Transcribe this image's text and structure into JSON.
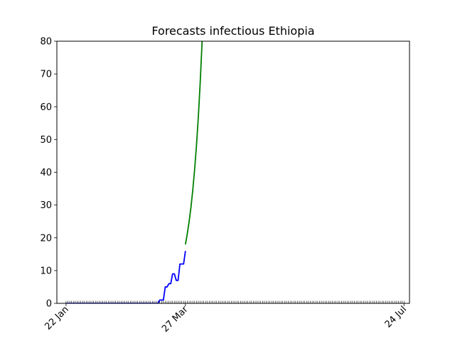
{
  "chart_data": {
    "type": "line",
    "title": "Forecasts infectious Ethiopia",
    "xlabel": "",
    "ylabel": "",
    "x_range": [
      "2020-01-17",
      "2020-07-27"
    ],
    "ylim": [
      0,
      80
    ],
    "y_ticks": [
      0,
      10,
      20,
      30,
      40,
      50,
      60,
      70,
      80
    ],
    "x_ticks": [
      {
        "date": "2020-01-22",
        "label": "22 Jan"
      },
      {
        "date": "2020-03-27",
        "label": "27 Mar"
      },
      {
        "date": "2020-07-24",
        "label": "24 Jul"
      }
    ],
    "minor_ticks": "daily",
    "grid": false,
    "series": [
      {
        "color": "#0000ff",
        "points": [
          [
            "2020-01-22",
            0
          ],
          [
            "2020-03-12",
            0
          ],
          [
            "2020-03-13",
            1
          ],
          [
            "2020-03-14",
            1
          ],
          [
            "2020-03-15",
            1
          ],
          [
            "2020-03-16",
            5
          ],
          [
            "2020-03-17",
            5
          ],
          [
            "2020-03-18",
            6
          ],
          [
            "2020-03-19",
            6
          ],
          [
            "2020-03-20",
            9
          ],
          [
            "2020-03-21",
            9
          ],
          [
            "2020-03-22",
            7
          ],
          [
            "2020-03-23",
            7
          ],
          [
            "2020-03-24",
            12
          ],
          [
            "2020-03-25",
            12
          ],
          [
            "2020-03-26",
            12
          ],
          [
            "2020-03-27",
            16
          ]
        ]
      },
      {
        "color": "#008000",
        "points": [
          [
            "2020-03-27",
            18
          ],
          [
            "2020-03-28",
            21.2
          ],
          [
            "2020-03-29",
            24.9
          ],
          [
            "2020-03-30",
            29.3
          ],
          [
            "2020-03-31",
            34.6
          ],
          [
            "2020-04-01",
            40.8
          ],
          [
            "2020-04-02",
            48.1
          ],
          [
            "2020-04-03",
            56.7
          ],
          [
            "2020-04-04",
            66.9
          ],
          [
            "2020-04-05",
            78.9
          ],
          [
            "2020-04-06",
            93
          ]
        ]
      }
    ]
  }
}
